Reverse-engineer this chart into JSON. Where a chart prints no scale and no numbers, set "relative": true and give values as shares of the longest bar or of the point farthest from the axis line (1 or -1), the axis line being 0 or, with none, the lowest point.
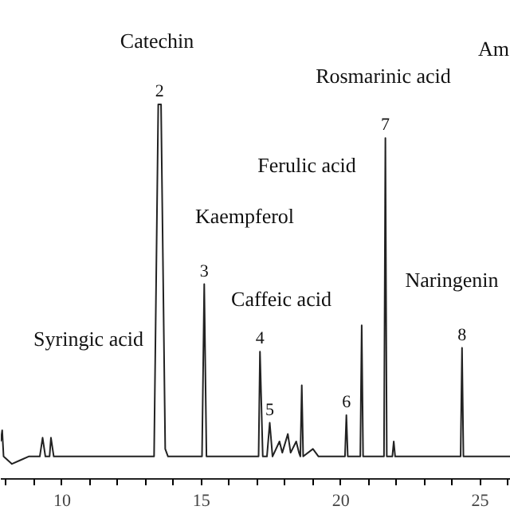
{
  "chart_data": {
    "type": "line",
    "relative": true,
    "color": "#222222",
    "x": [
      7.8,
      7.85,
      7.9,
      8.2,
      8.5,
      8.8,
      9.2,
      9.3,
      9.4,
      9.55,
      9.6,
      9.7,
      13.3,
      13.45,
      13.55,
      13.7,
      13.8,
      15.02,
      15.1,
      15.18,
      17.05,
      17.1,
      17.2,
      17.35,
      17.45,
      17.55,
      17.8,
      17.9,
      18.1,
      18.2,
      18.4,
      18.5,
      18.55,
      18.6,
      18.65,
      19.0,
      19.2,
      20.15,
      20.2,
      20.25,
      20.7,
      20.75,
      20.8,
      21.55,
      21.6,
      21.65,
      21.85,
      21.9,
      21.95,
      24.3,
      24.35,
      24.4,
      26.1
    ],
    "values": [
      0.1,
      0.13,
      0.06,
      0.04,
      0.05,
      0.06,
      0.06,
      0.11,
      0.06,
      0.06,
      0.11,
      0.06,
      0.06,
      1.0,
      1.0,
      0.08,
      0.06,
      0.06,
      0.52,
      0.06,
      0.06,
      0.34,
      0.06,
      0.06,
      0.15,
      0.06,
      0.1,
      0.07,
      0.12,
      0.07,
      0.1,
      0.07,
      0.06,
      0.25,
      0.06,
      0.08,
      0.06,
      0.06,
      0.17,
      0.06,
      0.06,
      0.41,
      0.06,
      0.06,
      0.91,
      0.06,
      0.06,
      0.1,
      0.06,
      0.06,
      0.35,
      0.06,
      0.06
    ],
    "xlim": [
      7.8,
      26.1
    ],
    "xticks": [
      {
        "value": 8,
        "label": null
      },
      {
        "value": 9,
        "label": null
      },
      10,
      {
        "value": 11,
        "label": null
      },
      {
        "value": 12,
        "label": null
      },
      {
        "value": 13,
        "label": null
      },
      {
        "value": 14,
        "label": null
      },
      15,
      {
        "value": 16,
        "label": null
      },
      {
        "value": 17,
        "label": null
      },
      {
        "value": 18,
        "label": null
      },
      {
        "value": 19,
        "label": null
      },
      20,
      {
        "value": 21,
        "label": null
      },
      {
        "value": 22,
        "label": null
      },
      {
        "value": 23,
        "label": null
      },
      {
        "value": 24,
        "label": null
      },
      25,
      {
        "value": 26,
        "label": null
      }
    ],
    "annotations": [
      {
        "text": "2",
        "x": 13.5,
        "y": 1.0
      },
      {
        "text": "3",
        "x": 15.1,
        "y": 0.52
      },
      {
        "text": "4",
        "x": 17.1,
        "y": 0.34
      },
      {
        "text": "5",
        "x": 17.45,
        "y": 0.15
      },
      {
        "text": "6",
        "x": 20.2,
        "y": 0.17
      },
      {
        "text": "7",
        "x": 21.6,
        "y": 0.91
      },
      {
        "text": "8",
        "x": 24.35,
        "y": 0.35
      },
      "Catechin",
      "Kaempferol",
      "Caffeic acid",
      "Syringic acid",
      "Ferulic acid",
      "Rosmarinic acid",
      "Naringenin",
      "Am"
    ]
  }
}
